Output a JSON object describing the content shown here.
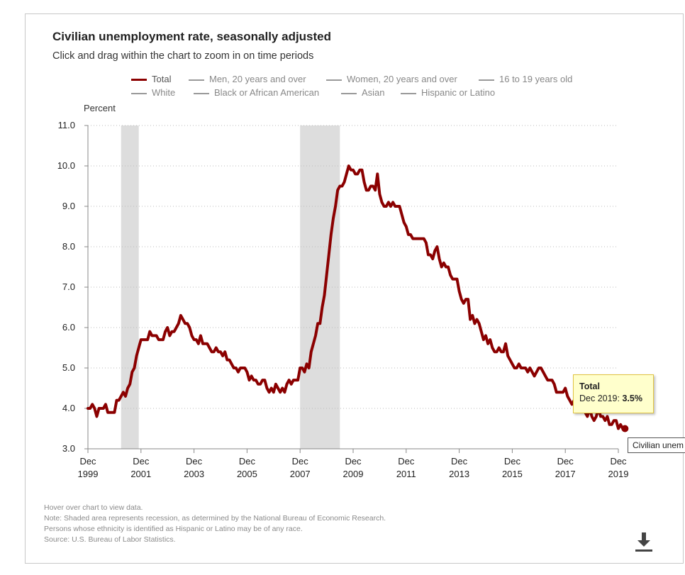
{
  "title": "Civilian unemployment rate, seasonally adjusted",
  "subtitle": "Click and drag within the chart to zoom in on time periods",
  "legend": [
    {
      "label": "Total",
      "active": true
    },
    {
      "label": "Men, 20 years and over",
      "active": false
    },
    {
      "label": "Women, 20 years and over",
      "active": false
    },
    {
      "label": "16 to 19 years old",
      "active": false
    },
    {
      "label": "White",
      "active": false
    },
    {
      "label": "Black or African American",
      "active": false
    },
    {
      "label": "Asian",
      "active": false
    },
    {
      "label": "Hispanic or Latino",
      "active": false
    }
  ],
  "colors": {
    "series": "#8b0000",
    "recession": "#dddddd",
    "grid": "#bbbbbb",
    "axis": "#888888"
  },
  "tooltip": {
    "series": "Total",
    "date": "Dec 2019: ",
    "value": "3.5%"
  },
  "tooltip2": "Civilian unem",
  "notes": [
    "Hover over chart to view data.",
    "Note: Shaded area represents recession, as determined by the National Bureau of Economic Research.",
    "Persons whose ethnicity is identified as Hispanic or Latino may be of any race.",
    "Source: U.S. Bureau of Labor Statistics."
  ],
  "download_icon": "download-icon",
  "chart_data": {
    "type": "line",
    "title": "Civilian unemployment rate, seasonally adjusted",
    "ylabel": "Percent",
    "ylim": [
      3.0,
      11.0
    ],
    "yticks": [
      "3.0",
      "4.0",
      "5.0",
      "6.0",
      "7.0",
      "8.0",
      "9.0",
      "10.0",
      "11.0"
    ],
    "xticks": [
      {
        "date": "1999-12",
        "m": "Dec",
        "y": "1999"
      },
      {
        "date": "2001-12",
        "m": "Dec",
        "y": "2001"
      },
      {
        "date": "2003-12",
        "m": "Dec",
        "y": "2003"
      },
      {
        "date": "2005-12",
        "m": "Dec",
        "y": "2005"
      },
      {
        "date": "2007-12",
        "m": "Dec",
        "y": "2007"
      },
      {
        "date": "2009-12",
        "m": "Dec",
        "y": "2009"
      },
      {
        "date": "2011-12",
        "m": "Dec",
        "y": "2011"
      },
      {
        "date": "2013-12",
        "m": "Dec",
        "y": "2013"
      },
      {
        "date": "2015-12",
        "m": "Dec",
        "y": "2015"
      },
      {
        "date": "2017-12",
        "m": "Dec",
        "y": "2017"
      },
      {
        "date": "2019-12",
        "m": "Dec",
        "y": "2019"
      }
    ],
    "recessions": [
      {
        "start": "2001-03",
        "end": "2001-11"
      },
      {
        "start": "2007-12",
        "end": "2009-06"
      }
    ],
    "grid": true,
    "legend_position": "top",
    "series": [
      {
        "name": "Total",
        "start": "1999-12",
        "frequency": "monthly",
        "values": [
          4.0,
          4.0,
          4.1,
          4.0,
          3.8,
          4.0,
          4.0,
          4.0,
          4.1,
          3.9,
          3.9,
          3.9,
          3.9,
          4.2,
          4.2,
          4.3,
          4.4,
          4.3,
          4.5,
          4.6,
          4.9,
          5.0,
          5.3,
          5.5,
          5.7,
          5.7,
          5.7,
          5.7,
          5.9,
          5.8,
          5.8,
          5.8,
          5.7,
          5.7,
          5.7,
          5.9,
          6.0,
          5.8,
          5.9,
          5.9,
          6.0,
          6.1,
          6.3,
          6.2,
          6.1,
          6.1,
          6.0,
          5.8,
          5.7,
          5.7,
          5.6,
          5.8,
          5.6,
          5.6,
          5.6,
          5.5,
          5.4,
          5.4,
          5.5,
          5.4,
          5.4,
          5.3,
          5.4,
          5.2,
          5.2,
          5.1,
          5.0,
          5.0,
          4.9,
          5.0,
          5.0,
          5.0,
          4.9,
          4.7,
          4.8,
          4.7,
          4.7,
          4.6,
          4.6,
          4.7,
          4.7,
          4.5,
          4.4,
          4.5,
          4.4,
          4.6,
          4.5,
          4.4,
          4.5,
          4.4,
          4.6,
          4.7,
          4.6,
          4.7,
          4.7,
          4.7,
          5.0,
          5.0,
          4.9,
          5.1,
          5.0,
          5.4,
          5.6,
          5.8,
          6.1,
          6.1,
          6.5,
          6.8,
          7.3,
          7.8,
          8.3,
          8.7,
          9.0,
          9.4,
          9.5,
          9.5,
          9.6,
          9.8,
          10.0,
          9.9,
          9.9,
          9.8,
          9.8,
          9.9,
          9.9,
          9.6,
          9.4,
          9.4,
          9.5,
          9.5,
          9.4,
          9.8,
          9.3,
          9.1,
          9.0,
          9.0,
          9.1,
          9.0,
          9.1,
          9.0,
          9.0,
          9.0,
          8.8,
          8.6,
          8.5,
          8.3,
          8.3,
          8.2,
          8.2,
          8.2,
          8.2,
          8.2,
          8.2,
          8.1,
          7.8,
          7.8,
          7.7,
          7.9,
          8.0,
          7.7,
          7.5,
          7.6,
          7.5,
          7.5,
          7.3,
          7.2,
          7.2,
          7.2,
          6.9,
          6.7,
          6.6,
          6.7,
          6.7,
          6.2,
          6.3,
          6.1,
          6.2,
          6.1,
          5.9,
          5.7,
          5.8,
          5.6,
          5.7,
          5.5,
          5.4,
          5.4,
          5.5,
          5.4,
          5.4,
          5.6,
          5.3,
          5.2,
          5.1,
          5.0,
          5.0,
          5.1,
          5.0,
          5.0,
          5.0,
          4.9,
          5.0,
          4.9,
          4.8,
          4.9,
          5.0,
          5.0,
          4.9,
          4.8,
          4.7,
          4.7,
          4.7,
          4.6,
          4.4,
          4.4,
          4.4,
          4.4,
          4.5,
          4.3,
          4.2,
          4.1,
          4.2,
          4.1,
          4.1,
          4.1,
          4.1,
          3.9,
          3.8,
          4.0,
          3.8,
          3.7,
          3.8,
          4.0,
          3.8,
          3.8,
          3.7,
          3.8,
          3.6,
          3.6,
          3.7,
          3.7,
          3.5,
          3.6,
          3.5,
          3.5
        ]
      }
    ]
  }
}
